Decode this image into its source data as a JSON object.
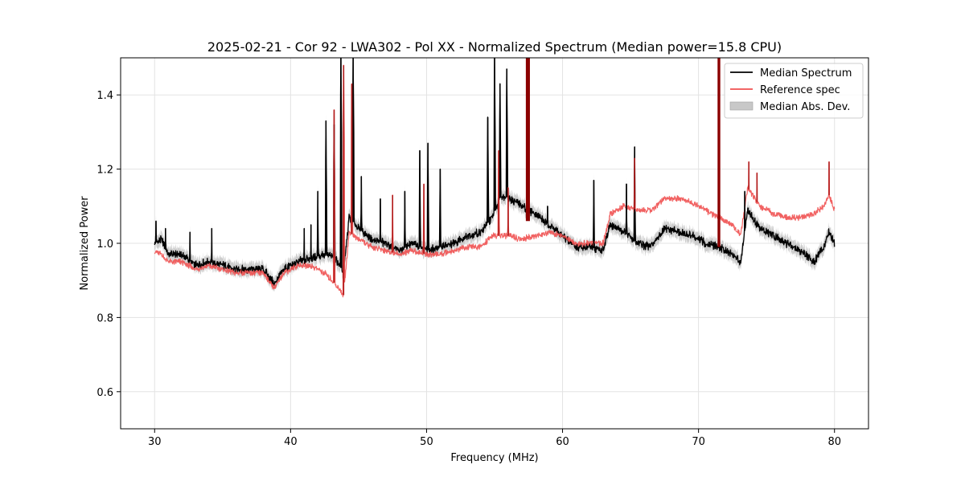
{
  "chart_data": {
    "type": "line",
    "title": "2025-02-21 - Cor 92 - LWA302 - Pol XX - Normalized Spectrum (Median power=15.8 CPU)",
    "xlabel": "Frequency (MHz)",
    "ylabel": "Normalized Power",
    "xlim": [
      27.5,
      82.5
    ],
    "ylim": [
      0.5,
      1.5
    ],
    "xticks": [
      30,
      40,
      50,
      60,
      70,
      80
    ],
    "yticks": [
      0.6,
      0.8,
      1.0,
      1.2,
      1.4
    ],
    "xtick_labels": [
      "30",
      "40",
      "50",
      "60",
      "70",
      "80"
    ],
    "ytick_labels": [
      "0.6",
      "0.8",
      "1.0",
      "1.2",
      "1.4"
    ],
    "grid": true,
    "legend_position": "top-right",
    "legend": [
      {
        "label": "Median Spectrum",
        "color": "#000000",
        "kind": "line"
      },
      {
        "label": "Reference spec",
        "color": "#f05050",
        "kind": "line"
      },
      {
        "label": "Median Abs. Dev.",
        "color": "#c8c8c8",
        "kind": "patch"
      }
    ],
    "series": [
      {
        "name": "Median Spectrum",
        "color": "#000000",
        "x": [
          30.0,
          30.5,
          31.0,
          32.0,
          33.0,
          34.0,
          35.0,
          36.0,
          37.0,
          38.0,
          38.8,
          39.5,
          40.5,
          41.5,
          42.5,
          43.3,
          43.9,
          44.3,
          45.0,
          46.0,
          47.0,
          48.0,
          49.0,
          50.0,
          51.0,
          52.0,
          53.0,
          54.0,
          54.8,
          55.5,
          56.2,
          57.0,
          58.0,
          59.0,
          60.0,
          61.0,
          62.0,
          63.0,
          63.5,
          64.5,
          65.5,
          66.5,
          67.5,
          68.5,
          69.5,
          70.5,
          71.5,
          72.5,
          73.1,
          73.6,
          74.5,
          75.5,
          76.5,
          77.5,
          78.5,
          79.2,
          79.6,
          80.0
        ],
        "values": [
          1.0,
          1.01,
          0.97,
          0.97,
          0.94,
          0.95,
          0.94,
          0.93,
          0.93,
          0.93,
          0.89,
          0.93,
          0.95,
          0.96,
          0.97,
          0.96,
          0.92,
          1.07,
          1.04,
          1.01,
          1.0,
          0.98,
          1.0,
          0.98,
          0.99,
          1.0,
          1.02,
          1.03,
          1.07,
          1.13,
          1.12,
          1.1,
          1.08,
          1.05,
          1.02,
          0.99,
          0.99,
          0.98,
          1.05,
          1.03,
          1.0,
          0.99,
          1.04,
          1.03,
          1.02,
          1.0,
          0.99,
          0.97,
          0.95,
          1.09,
          1.04,
          1.02,
          1.0,
          0.98,
          0.95,
          0.99,
          1.03,
          1.0
        ],
        "spikes": [
          [
            30.1,
            1.06
          ],
          [
            30.8,
            1.04
          ],
          [
            32.6,
            1.03
          ],
          [
            34.2,
            1.04
          ],
          [
            41.0,
            1.04
          ],
          [
            41.5,
            1.05
          ],
          [
            42.0,
            1.14
          ],
          [
            42.6,
            1.33
          ],
          [
            43.2,
            1.32
          ],
          [
            43.7,
            1.5
          ],
          [
            44.6,
            1.5
          ],
          [
            45.2,
            1.18
          ],
          [
            46.6,
            1.12
          ],
          [
            48.4,
            1.14
          ],
          [
            49.5,
            1.25
          ],
          [
            50.1,
            1.27
          ],
          [
            51.0,
            1.2
          ],
          [
            54.5,
            1.34
          ],
          [
            55.0,
            1.5
          ],
          [
            55.4,
            1.43
          ],
          [
            55.9,
            1.47
          ],
          [
            58.9,
            1.1
          ],
          [
            62.3,
            1.17
          ],
          [
            64.7,
            1.16
          ],
          [
            65.3,
            1.26
          ],
          [
            73.4,
            1.14
          ]
        ]
      },
      {
        "name": "Reference spec",
        "color": "#f05050",
        "x": [
          30.0,
          30.5,
          31.0,
          32.0,
          33.0,
          34.0,
          35.0,
          36.0,
          37.0,
          38.0,
          38.8,
          39.5,
          40.5,
          41.5,
          42.5,
          43.3,
          43.9,
          44.3,
          45.0,
          46.0,
          47.0,
          48.0,
          49.0,
          50.0,
          51.0,
          52.0,
          53.0,
          54.0,
          54.8,
          55.5,
          56.2,
          57.0,
          58.0,
          59.0,
          60.0,
          61.0,
          62.0,
          63.0,
          63.5,
          64.5,
          65.5,
          66.5,
          67.5,
          68.5,
          69.5,
          70.5,
          71.5,
          72.5,
          73.1,
          73.6,
          74.5,
          75.5,
          76.5,
          77.5,
          78.5,
          79.2,
          79.6,
          80.0
        ],
        "values": [
          0.98,
          0.97,
          0.95,
          0.95,
          0.93,
          0.94,
          0.93,
          0.92,
          0.92,
          0.92,
          0.88,
          0.92,
          0.94,
          0.94,
          0.92,
          0.89,
          0.86,
          1.03,
          1.01,
          0.99,
          0.98,
          0.97,
          0.98,
          0.97,
          0.97,
          0.98,
          0.99,
          0.99,
          1.02,
          1.02,
          1.02,
          1.01,
          1.02,
          1.03,
          1.02,
          1.0,
          1.0,
          1.0,
          1.08,
          1.1,
          1.09,
          1.09,
          1.12,
          1.12,
          1.11,
          1.09,
          1.07,
          1.05,
          1.02,
          1.15,
          1.1,
          1.08,
          1.07,
          1.07,
          1.08,
          1.1,
          1.13,
          1.09
        ],
        "spikes": [
          [
            43.2,
            1.36
          ],
          [
            43.9,
            1.48
          ],
          [
            44.5,
            1.43
          ],
          [
            47.5,
            1.13
          ],
          [
            49.8,
            1.16
          ],
          [
            55.3,
            1.25
          ],
          [
            56.0,
            1.15
          ],
          [
            65.3,
            1.23
          ],
          [
            73.7,
            1.22
          ],
          [
            74.3,
            1.19
          ],
          [
            79.6,
            1.22
          ]
        ]
      }
    ],
    "mad_band": {
      "name": "Median Abs. Dev.",
      "color": "#c8c8c8",
      "half_width": 0.018
    },
    "rfi_bands": [
      {
        "x0": 57.3,
        "x1": 57.6,
        "y0": 1.06,
        "y1": 1.5,
        "color": "#8b0000"
      },
      {
        "x0": 71.4,
        "x1": 71.6,
        "y0": 0.99,
        "y1": 1.5,
        "color": "#8b0000"
      }
    ]
  }
}
